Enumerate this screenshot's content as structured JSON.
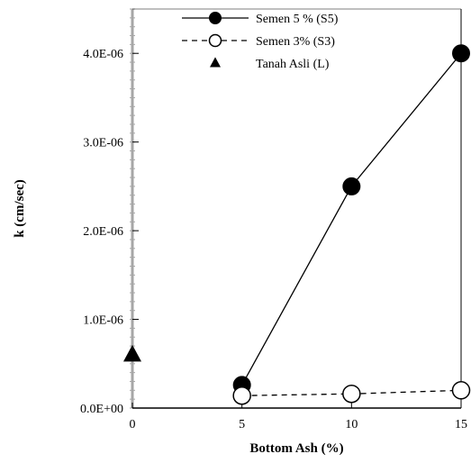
{
  "chart_data": {
    "type": "scatter",
    "title": "",
    "xlabel": "Bottom Ash (%)",
    "ylabel": "k (cm/sec)",
    "xlim": [
      0,
      15
    ],
    "ylim": [
      0,
      4.5e-06
    ],
    "x_ticks": [
      0,
      5,
      10,
      15
    ],
    "x_tick_labels": [
      "0",
      "5",
      "10",
      "15"
    ],
    "y_ticks": [
      0,
      1e-06,
      2e-06,
      3e-06,
      4e-06
    ],
    "y_tick_labels": [
      "0.0E+00",
      "1.0E-06",
      "2.0E-06",
      "3.0E-06",
      "4.0E-06"
    ],
    "grid": false,
    "legend_position": "top-center",
    "series": [
      {
        "name": "Semen 5 % (S5)",
        "marker": "filled-circle",
        "line": "solid",
        "x": [
          5,
          10,
          15
        ],
        "y": [
          2.6e-07,
          2.5e-06,
          4e-06
        ]
      },
      {
        "name": "Semen 3% (S3)",
        "marker": "open-circle",
        "line": "dashed",
        "x": [
          5,
          10,
          15
        ],
        "y": [
          1.4e-07,
          1.6e-07,
          2e-07
        ]
      },
      {
        "name": "Tanah Asli (L)",
        "marker": "filled-triangle",
        "line": "none",
        "x": [
          0
        ],
        "y": [
          6e-07
        ]
      }
    ]
  }
}
